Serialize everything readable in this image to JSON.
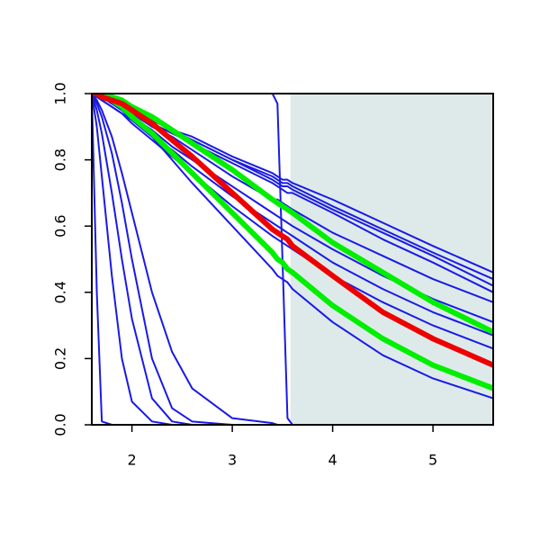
{
  "chart_data": {
    "type": "line",
    "x": [
      1.6,
      1.65,
      1.7,
      1.8,
      1.9,
      2.0,
      2.2,
      2.4,
      2.6,
      3.0,
      3.4,
      3.45,
      3.5,
      3.55,
      3.6,
      4.0,
      4.5,
      5.0,
      5.6
    ],
    "xlim": [
      1.6,
      5.6
    ],
    "xticks": [
      2,
      3,
      4,
      5
    ],
    "ylim": [
      0,
      1
    ],
    "yticks": [
      {
        "value": 0,
        "label": "0.0"
      },
      {
        "value": 0.2,
        "label": "0.2"
      },
      {
        "value": 0.4,
        "label": "0.4"
      },
      {
        "value": 0.6,
        "label": "0.6"
      },
      {
        "value": 0.8,
        "label": "0.8"
      },
      {
        "value": 1,
        "label": "1.0"
      }
    ],
    "shaded_x": [
      3.58,
      5.6
    ],
    "shade_color": "#deeaea",
    "series": [
      {
        "color": "#1a1ae6",
        "width": 2,
        "values": [
          1,
          0.4,
          0.01,
          0,
          0,
          0,
          0,
          0,
          0,
          0,
          0,
          0,
          0,
          0,
          0,
          0,
          0,
          0,
          0
        ]
      },
      {
        "color": "#1a1ae6",
        "width": 2,
        "values": [
          1,
          1,
          1,
          1,
          1,
          1,
          1,
          1,
          1,
          1,
          1,
          0.97,
          0.5,
          0.02,
          0,
          0,
          0,
          0,
          0
        ]
      },
      {
        "color": "#1a1ae6",
        "width": 2,
        "values": [
          1,
          0.9,
          0.75,
          0.45,
          0.2,
          0.07,
          0.01,
          0,
          0,
          0,
          0,
          0,
          0,
          0,
          0,
          0,
          0,
          0,
          0
        ]
      },
      {
        "color": "#1a1ae6",
        "width": 2,
        "values": [
          1,
          0.95,
          0.88,
          0.7,
          0.5,
          0.32,
          0.08,
          0.01,
          0,
          0,
          0,
          0,
          0,
          0,
          0,
          0,
          0,
          0,
          0
        ]
      },
      {
        "color": "#1a1ae6",
        "width": 2,
        "values": [
          1,
          0.97,
          0.93,
          0.82,
          0.67,
          0.5,
          0.2,
          0.05,
          0.01,
          0,
          0,
          0,
          0,
          0,
          0,
          0,
          0,
          0,
          0
        ]
      },
      {
        "color": "#1a1ae6",
        "width": 2,
        "values": [
          1,
          0.98,
          0.95,
          0.87,
          0.76,
          0.64,
          0.4,
          0.22,
          0.11,
          0.02,
          0.005,
          0,
          0,
          0,
          0,
          0,
          0,
          0,
          0
        ]
      },
      {
        "color": "#1a1ae6",
        "width": 2,
        "values": [
          1,
          1,
          0.99,
          0.97,
          0.95,
          0.92,
          0.87,
          0.8,
          0.73,
          0.6,
          0.47,
          0.45,
          0.44,
          0.43,
          0.41,
          0.31,
          0.21,
          0.14,
          0.08
        ]
      },
      {
        "color": "#1a1ae6",
        "width": 2,
        "values": [
          1,
          0.99,
          0.99,
          0.97,
          0.96,
          0.95,
          0.92,
          0.89,
          0.87,
          0.81,
          0.76,
          0.75,
          0.74,
          0.74,
          0.73,
          0.68,
          0.61,
          0.54,
          0.46
        ]
      },
      {
        "color": "#1a1ae6",
        "width": 2,
        "values": [
          1,
          0.99,
          0.99,
          0.97,
          0.96,
          0.94,
          0.92,
          0.89,
          0.86,
          0.8,
          0.75,
          0.74,
          0.73,
          0.73,
          0.72,
          0.66,
          0.59,
          0.52,
          0.44
        ]
      },
      {
        "color": "#1a1ae6",
        "width": 2,
        "values": [
          1,
          0.99,
          0.99,
          0.97,
          0.96,
          0.94,
          0.91,
          0.88,
          0.86,
          0.8,
          0.74,
          0.73,
          0.72,
          0.72,
          0.71,
          0.65,
          0.58,
          0.51,
          0.42
        ]
      },
      {
        "color": "#1a1ae6",
        "width": 2,
        "values": [
          1,
          0.99,
          0.99,
          0.97,
          0.96,
          0.94,
          0.91,
          0.88,
          0.85,
          0.79,
          0.73,
          0.72,
          0.71,
          0.7,
          0.7,
          0.64,
          0.56,
          0.49,
          0.4
        ]
      },
      {
        "color": "#1a1ae6",
        "width": 2,
        "values": [
          1,
          1,
          0.99,
          0.97,
          0.96,
          0.94,
          0.9,
          0.87,
          0.83,
          0.75,
          0.68,
          0.68,
          0.67,
          0.66,
          0.65,
          0.58,
          0.51,
          0.44,
          0.37
        ]
      },
      {
        "color": "#1a1ae6",
        "width": 2,
        "values": [
          1,
          0.99,
          0.99,
          0.97,
          0.95,
          0.93,
          0.89,
          0.84,
          0.8,
          0.72,
          0.64,
          0.63,
          0.62,
          0.61,
          0.6,
          0.53,
          0.45,
          0.38,
          0.31
        ]
      },
      {
        "color": "#1a1ae6",
        "width": 2,
        "values": [
          1,
          0.99,
          0.98,
          0.96,
          0.94,
          0.92,
          0.87,
          0.83,
          0.78,
          0.69,
          0.61,
          0.6,
          0.59,
          0.58,
          0.57,
          0.49,
          0.41,
          0.34,
          0.27
        ]
      },
      {
        "color": "#1a1ae6",
        "width": 2,
        "values": [
          1,
          0.99,
          0.98,
          0.96,
          0.94,
          0.91,
          0.86,
          0.81,
          0.76,
          0.66,
          0.57,
          0.56,
          0.55,
          0.54,
          0.53,
          0.45,
          0.37,
          0.3,
          0.23
        ]
      },
      {
        "color": "#00ee00",
        "width": 6,
        "values": [
          1,
          1,
          0.99,
          0.98,
          0.96,
          0.93,
          0.88,
          0.82,
          0.76,
          0.64,
          0.52,
          0.5,
          0.49,
          0.47,
          0.46,
          0.36,
          0.26,
          0.18,
          0.11
        ]
      },
      {
        "color": "#00ee00",
        "width": 6,
        "values": [
          1,
          1,
          1,
          0.99,
          0.98,
          0.96,
          0.93,
          0.89,
          0.85,
          0.77,
          0.68,
          0.67,
          0.66,
          0.65,
          0.64,
          0.55,
          0.46,
          0.37,
          0.28
        ]
      },
      {
        "color": "#ee0000",
        "width": 6,
        "values": [
          1,
          1,
          0.99,
          0.98,
          0.97,
          0.95,
          0.91,
          0.86,
          0.81,
          0.7,
          0.59,
          0.58,
          0.57,
          0.56,
          0.54,
          0.45,
          0.34,
          0.26,
          0.18
        ]
      }
    ]
  }
}
